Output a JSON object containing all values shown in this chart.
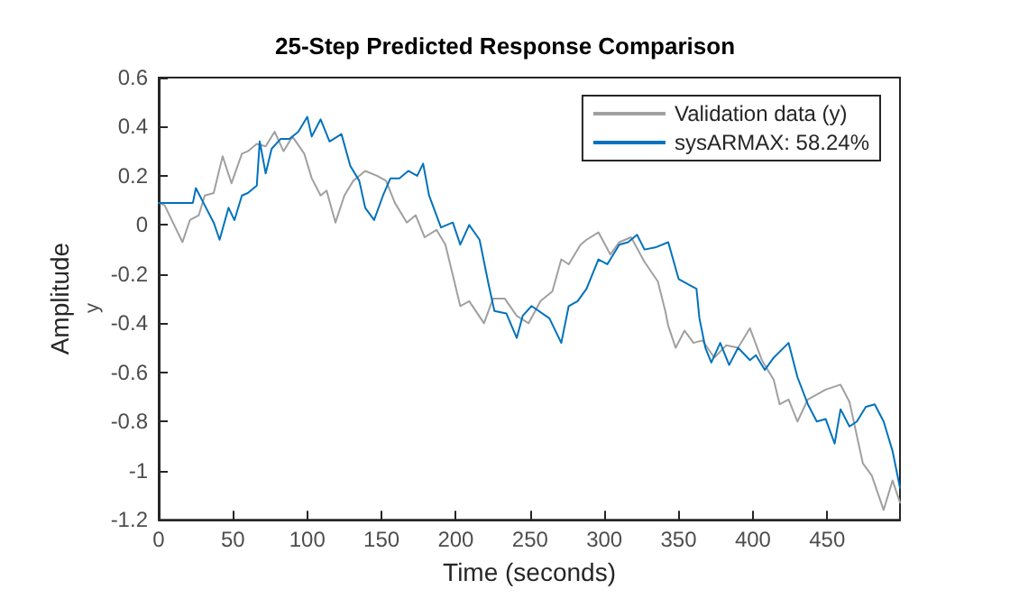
{
  "chart_data": {
    "type": "line",
    "title": "25-Step Predicted Response Comparison",
    "xlabel": "Time (seconds)",
    "ylabel": "Amplitude",
    "annotations": [
      "y"
    ],
    "xlim": [
      0,
      499
    ],
    "xticks": [
      0,
      50,
      100,
      150,
      200,
      250,
      300,
      350,
      400,
      450
    ],
    "ylim": [
      -1.2,
      0.6
    ],
    "yticks": [
      -1.2,
      -1,
      -0.8,
      -0.6,
      -0.4,
      -0.2,
      0,
      0.2,
      0.4,
      0.6
    ],
    "grid": false,
    "legend": "top right",
    "marker": "none",
    "line_style": "solid",
    "series": [
      {
        "name": "Validation data (y)",
        "color": "#a0a0a0",
        "x": [
          0,
          4,
          16,
          21,
          27,
          31,
          37,
          43,
          49,
          56,
          60,
          66,
          72,
          78,
          84,
          90,
          98,
          103,
          109,
          113,
          119,
          125,
          131,
          139,
          147,
          153,
          159,
          167,
          173,
          179,
          187,
          193,
          203,
          209,
          219,
          225,
          233,
          241,
          249,
          257,
          265,
          271,
          276,
          284,
          288,
          296,
          304,
          310,
          318,
          327,
          336,
          341,
          343,
          348,
          354,
          360,
          366,
          374,
          382,
          390,
          398,
          406,
          414,
          418,
          424,
          430,
          437,
          449,
          459,
          465,
          474,
          480,
          488,
          494,
          499
        ],
        "values": [
          0.09,
          0.08,
          -0.07,
          0.02,
          0.04,
          0.12,
          0.13,
          0.28,
          0.17,
          0.29,
          0.3,
          0.33,
          0.32,
          0.38,
          0.3,
          0.36,
          0.29,
          0.19,
          0.12,
          0.14,
          0.01,
          0.12,
          0.18,
          0.22,
          0.2,
          0.18,
          0.09,
          0.01,
          0.04,
          -0.05,
          -0.02,
          -0.08,
          -0.33,
          -0.31,
          -0.4,
          -0.3,
          -0.3,
          -0.37,
          -0.4,
          -0.31,
          -0.27,
          -0.14,
          -0.16,
          -0.08,
          -0.06,
          -0.03,
          -0.12,
          -0.07,
          -0.05,
          -0.15,
          -0.23,
          -0.35,
          -0.41,
          -0.5,
          -0.43,
          -0.48,
          -0.47,
          -0.54,
          -0.49,
          -0.5,
          -0.42,
          -0.55,
          -0.63,
          -0.73,
          -0.71,
          -0.8,
          -0.71,
          -0.67,
          -0.65,
          -0.72,
          -0.97,
          -1.02,
          -1.16,
          -1.04,
          -1.13
        ]
      },
      {
        "name": "sysARMAX: 58.24%",
        "color": "#0072bd",
        "x": [
          0,
          23,
          25,
          31,
          37,
          41,
          47,
          51,
          56,
          60,
          66,
          68,
          72,
          76,
          82,
          88,
          94,
          100,
          103,
          109,
          115,
          123,
          129,
          135,
          139,
          145,
          151,
          156,
          162,
          168,
          174,
          178,
          182,
          190,
          198,
          203,
          209,
          216,
          222,
          226,
          234,
          241,
          245,
          251,
          263,
          271,
          276,
          282,
          288,
          296,
          302,
          310,
          316,
          322,
          327,
          335,
          343,
          350,
          362,
          364,
          368,
          372,
          378,
          384,
          390,
          398,
          402,
          408,
          414,
          424,
          430,
          437,
          443,
          449,
          455,
          459,
          465,
          470,
          476,
          482,
          488,
          494,
          499
        ],
        "values": [
          0.09,
          0.09,
          0.15,
          0.08,
          0.01,
          -0.06,
          0.07,
          0.02,
          0.12,
          0.13,
          0.16,
          0.34,
          0.21,
          0.31,
          0.35,
          0.35,
          0.38,
          0.44,
          0.36,
          0.43,
          0.34,
          0.37,
          0.24,
          0.18,
          0.07,
          0.02,
          0.12,
          0.19,
          0.19,
          0.22,
          0.2,
          0.25,
          0.12,
          -0.01,
          0.01,
          -0.08,
          0,
          -0.06,
          -0.24,
          -0.35,
          -0.36,
          -0.46,
          -0.37,
          -0.33,
          -0.38,
          -0.48,
          -0.33,
          -0.31,
          -0.26,
          -0.14,
          -0.16,
          -0.08,
          -0.07,
          -0.04,
          -0.1,
          -0.09,
          -0.07,
          -0.22,
          -0.26,
          -0.38,
          -0.5,
          -0.56,
          -0.48,
          -0.57,
          -0.5,
          -0.55,
          -0.53,
          -0.59,
          -0.54,
          -0.48,
          -0.62,
          -0.73,
          -0.8,
          -0.79,
          -0.89,
          -0.75,
          -0.82,
          -0.8,
          -0.74,
          -0.73,
          -0.8,
          -0.92,
          -1.07
        ]
      }
    ]
  }
}
